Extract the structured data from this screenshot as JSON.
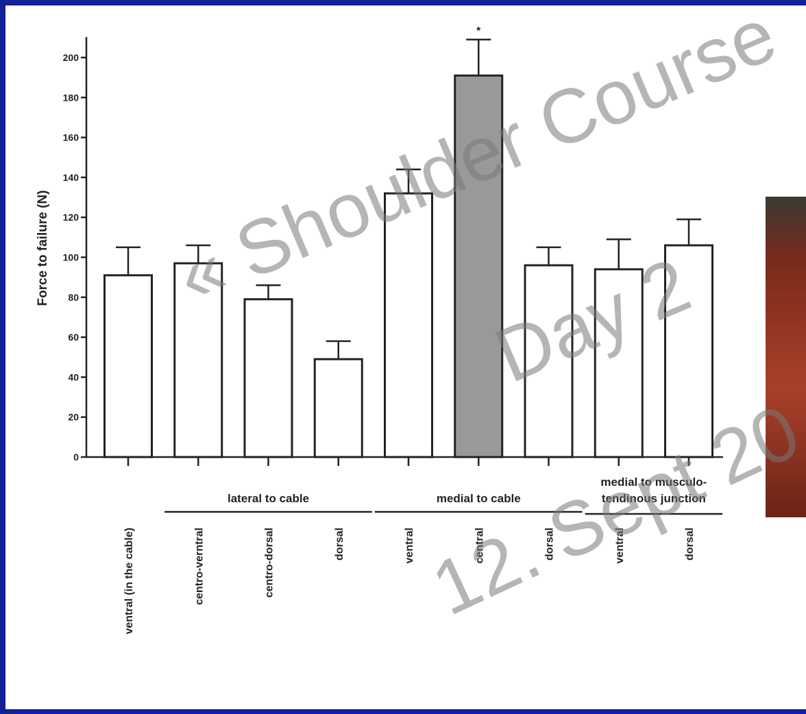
{
  "chart_data": {
    "type": "bar",
    "y_label": "Force to failure (N)",
    "categories": [
      "ventral (in the cable)",
      "centro-verntral",
      "centro-dorsal",
      "dorsal",
      "ventral",
      "central",
      "dorsal",
      "ventral",
      "dorsal"
    ],
    "values": [
      91,
      97,
      79,
      49,
      132,
      191,
      96,
      94,
      106
    ],
    "errors": [
      14,
      9,
      7,
      9,
      12,
      18,
      9,
      15,
      13
    ],
    "colors": [
      "#ffffff",
      "#ffffff",
      "#ffffff",
      "#ffffff",
      "#ffffff",
      "#999999",
      "#ffffff",
      "#ffffff",
      "#ffffff"
    ],
    "groups": [
      {
        "label": [
          "lateral to cable"
        ],
        "span": [
          1,
          3
        ]
      },
      {
        "label": [
          "medial to cable"
        ],
        "span": [
          4,
          6
        ]
      },
      {
        "label": [
          "medial to musculo-",
          "tendinous junction"
        ],
        "span": [
          7,
          8
        ]
      }
    ],
    "annotations": [
      {
        "text": "*",
        "category": 5
      }
    ],
    "ylim": [
      0,
      200
    ],
    "yticks": [
      0,
      20,
      40,
      60,
      80,
      100,
      120,
      140,
      160,
      180,
      200
    ],
    "grid": false
  },
  "watermark": [
    "« Shoulder Course",
    "Day 2",
    "12. Sept 20"
  ]
}
